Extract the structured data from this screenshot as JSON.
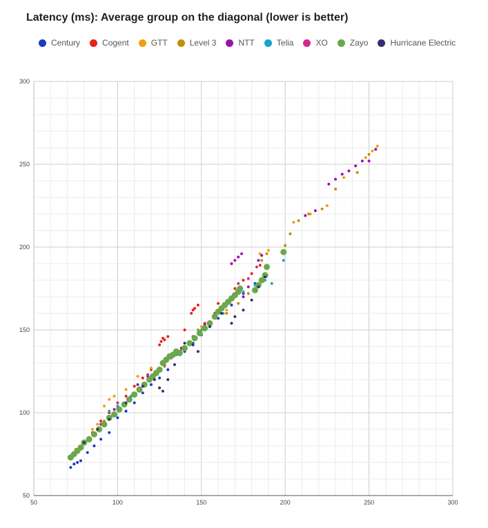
{
  "chart_data": {
    "type": "scatter",
    "title": "Latency (ms): Average group on the diagonal (lower is better)",
    "xlabel": "",
    "ylabel": "",
    "xlim": [
      50,
      300
    ],
    "ylim": [
      50,
      300
    ],
    "xticks": [
      "50",
      "100",
      "150",
      "200",
      "250",
      "300"
    ],
    "yticks": [
      "50",
      "100",
      "150",
      "200",
      "250",
      "300"
    ],
    "grid": true,
    "legend_position": "top",
    "series": [
      {
        "name": "Century",
        "color": "#1a39c9",
        "points": [
          [
            72,
            67
          ],
          [
            74,
            69
          ],
          [
            76,
            70
          ],
          [
            78,
            71
          ],
          [
            82,
            76
          ],
          [
            86,
            80
          ],
          [
            90,
            84
          ],
          [
            95,
            88
          ],
          [
            100,
            97
          ],
          [
            105,
            101
          ],
          [
            110,
            106
          ],
          [
            115,
            112
          ],
          [
            120,
            117
          ],
          [
            125,
            121
          ],
          [
            130,
            126
          ],
          [
            140,
            137
          ],
          [
            145,
            142
          ],
          [
            150,
            147
          ],
          [
            155,
            152
          ],
          [
            160,
            157
          ],
          [
            168,
            165
          ],
          [
            175,
            172
          ],
          [
            182,
            178
          ],
          [
            188,
            184
          ]
        ]
      },
      {
        "name": "Cogent",
        "color": "#e8211a",
        "points": [
          [
            85,
            88
          ],
          [
            90,
            95
          ],
          [
            95,
            100
          ],
          [
            100,
            104
          ],
          [
            105,
            110
          ],
          [
            110,
            116
          ],
          [
            115,
            121
          ],
          [
            120,
            126
          ],
          [
            125,
            141
          ],
          [
            126,
            143
          ],
          [
            127,
            145
          ],
          [
            128,
            144
          ],
          [
            130,
            146
          ],
          [
            140,
            150
          ],
          [
            144,
            160
          ],
          [
            145,
            162
          ],
          [
            146,
            163
          ],
          [
            148,
            165
          ],
          [
            152,
            154
          ],
          [
            160,
            166
          ],
          [
            170,
            175
          ],
          [
            175,
            180
          ],
          [
            180,
            184
          ],
          [
            185,
            189
          ]
        ]
      },
      {
        "name": "GTT",
        "color": "#f29d0c",
        "points": [
          [
            75,
            78
          ],
          [
            80,
            83
          ],
          [
            85,
            90
          ],
          [
            88,
            93
          ],
          [
            92,
            104
          ],
          [
            95,
            108
          ],
          [
            98,
            110
          ],
          [
            105,
            114
          ],
          [
            112,
            122
          ],
          [
            120,
            127
          ],
          [
            130,
            134
          ],
          [
            140,
            140
          ],
          [
            150,
            152
          ],
          [
            160,
            160
          ],
          [
            165,
            162
          ],
          [
            170,
            170
          ],
          [
            185,
            196
          ],
          [
            190,
            198
          ],
          [
            205,
            215
          ],
          [
            215,
            220
          ],
          [
            225,
            225
          ],
          [
            235,
            242
          ],
          [
            248,
            254
          ],
          [
            252,
            258
          ],
          [
            255,
            261
          ]
        ]
      },
      {
        "name": "Level 3",
        "color": "#bd9208",
        "points": [
          [
            78,
            80
          ],
          [
            85,
            87
          ],
          [
            92,
            95
          ],
          [
            100,
            103
          ],
          [
            108,
            110
          ],
          [
            118,
            120
          ],
          [
            128,
            128
          ],
          [
            138,
            138
          ],
          [
            148,
            150
          ],
          [
            158,
            158
          ],
          [
            165,
            160
          ],
          [
            172,
            166
          ],
          [
            178,
            172
          ],
          [
            186,
            192
          ],
          [
            189,
            196
          ],
          [
            200,
            201
          ],
          [
            203,
            208
          ],
          [
            208,
            216
          ],
          [
            214,
            220
          ],
          [
            222,
            223
          ],
          [
            230,
            235
          ],
          [
            243,
            245
          ],
          [
            250,
            256
          ],
          [
            254,
            259
          ]
        ]
      },
      {
        "name": "NTT",
        "color": "#9c11a9",
        "points": [
          [
            90,
            93
          ],
          [
            98,
            102
          ],
          [
            106,
            108
          ],
          [
            112,
            117
          ],
          [
            118,
            122
          ],
          [
            128,
            129
          ],
          [
            138,
            139
          ],
          [
            145,
            146
          ],
          [
            152,
            153
          ],
          [
            158,
            158
          ],
          [
            168,
            190
          ],
          [
            170,
            192
          ],
          [
            172,
            194
          ],
          [
            174,
            196
          ],
          [
            175,
            170
          ],
          [
            178,
            176
          ],
          [
            184,
            192
          ],
          [
            186,
            195
          ],
          [
            212,
            219
          ],
          [
            218,
            222
          ],
          [
            226,
            238
          ],
          [
            230,
            241
          ],
          [
            234,
            244
          ],
          [
            238,
            246
          ],
          [
            242,
            249
          ],
          [
            246,
            252
          ],
          [
            250,
            252
          ],
          [
            254,
            259
          ]
        ]
      },
      {
        "name": "Telia",
        "color": "#16a5c8",
        "points": [
          [
            95,
            101
          ],
          [
            100,
            104
          ],
          [
            108,
            110
          ],
          [
            120,
            122
          ],
          [
            135,
            135
          ],
          [
            150,
            150
          ],
          [
            155,
            154
          ],
          [
            163,
            160
          ],
          [
            175,
            173
          ],
          [
            182,
            177
          ],
          [
            188,
            180
          ],
          [
            192,
            178
          ],
          [
            199,
            192
          ]
        ]
      },
      {
        "name": "XO",
        "color": "#d6268f",
        "points": [
          [
            100,
            106
          ],
          [
            110,
            112
          ],
          [
            118,
            123
          ],
          [
            132,
            133
          ],
          [
            145,
            146
          ],
          [
            158,
            160
          ],
          [
            172,
            178
          ],
          [
            178,
            181
          ],
          [
            183,
            188
          ]
        ]
      },
      {
        "name": "Zayo",
        "color": "#6ba74b",
        "points": [
          [
            72,
            73
          ],
          [
            74,
            75
          ],
          [
            76,
            77
          ],
          [
            78,
            79
          ],
          [
            80,
            82
          ],
          [
            83,
            84
          ],
          [
            86,
            87
          ],
          [
            89,
            90
          ],
          [
            92,
            93
          ],
          [
            95,
            97
          ],
          [
            98,
            99
          ],
          [
            101,
            102
          ],
          [
            104,
            105
          ],
          [
            107,
            108
          ],
          [
            110,
            111
          ],
          [
            113,
            114
          ],
          [
            116,
            117
          ],
          [
            119,
            120
          ],
          [
            121,
            122
          ],
          [
            123,
            124
          ],
          [
            125,
            126
          ],
          [
            127,
            130
          ],
          [
            129,
            132
          ],
          [
            131,
            134
          ],
          [
            133,
            135
          ],
          [
            135,
            137
          ],
          [
            137,
            136
          ],
          [
            140,
            139
          ],
          [
            143,
            142
          ],
          [
            146,
            145
          ],
          [
            149,
            148
          ],
          [
            152,
            151
          ],
          [
            155,
            154
          ],
          [
            158,
            158
          ],
          [
            160,
            161
          ],
          [
            162,
            163
          ],
          [
            164,
            165
          ],
          [
            166,
            167
          ],
          [
            168,
            169
          ],
          [
            170,
            171
          ],
          [
            172,
            173
          ],
          [
            173,
            175
          ],
          [
            182,
            174
          ],
          [
            184,
            177
          ],
          [
            186,
            180
          ],
          [
            188,
            183
          ],
          [
            189,
            188
          ],
          [
            199,
            197
          ]
        ]
      },
      {
        "name": "Hurricane Electric",
        "color": "#322f73",
        "points": [
          [
            80,
            82
          ],
          [
            88,
            90
          ],
          [
            95,
            96
          ],
          [
            105,
            106
          ],
          [
            115,
            116
          ],
          [
            122,
            120
          ],
          [
            125,
            115
          ],
          [
            127,
            113
          ],
          [
            130,
            120
          ],
          [
            134,
            129
          ],
          [
            140,
            142
          ],
          [
            145,
            141
          ],
          [
            148,
            137
          ],
          [
            155,
            152
          ],
          [
            162,
            160
          ],
          [
            168,
            154
          ],
          [
            170,
            158
          ],
          [
            175,
            162
          ],
          [
            180,
            168
          ],
          [
            184,
            176
          ],
          [
            188,
            182
          ]
        ]
      }
    ]
  }
}
